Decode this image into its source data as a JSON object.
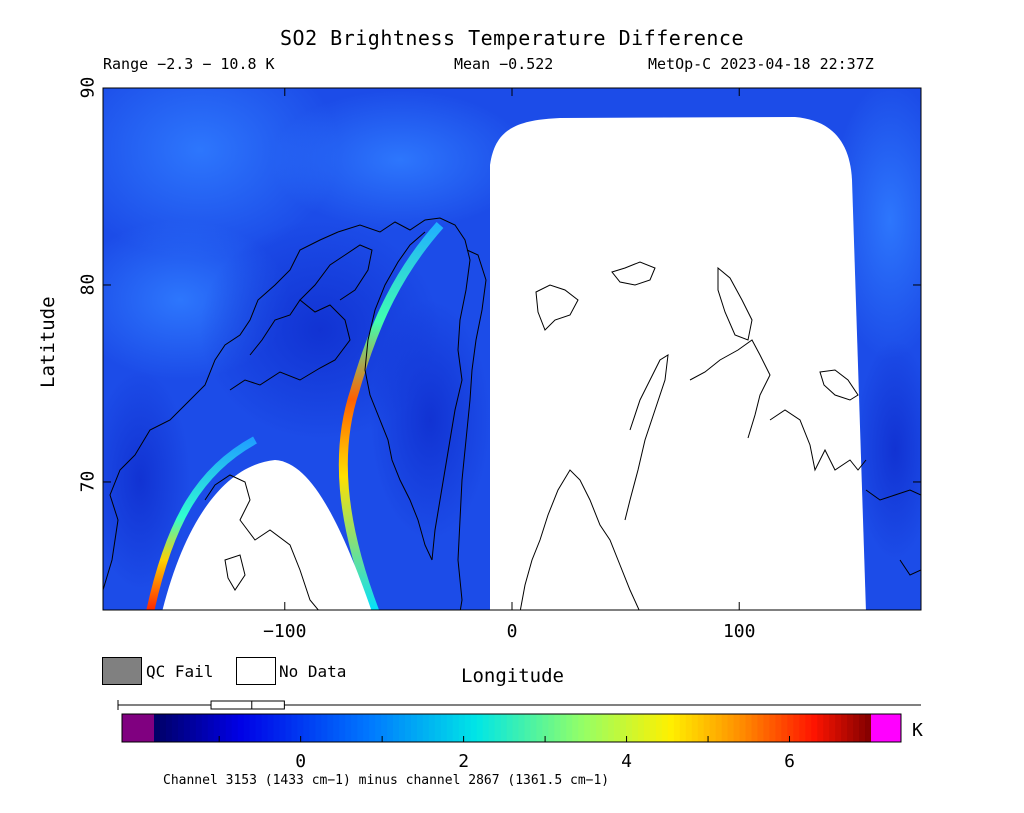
{
  "header": {
    "title": "SO2 Brightness Temperature Difference",
    "range": "Range −2.3 − 10.8 K",
    "mean": "Mean −0.522",
    "satellite": "MetOp-C 2023-04-18 22:37Z"
  },
  "chart_data": {
    "type": "heatmap",
    "xlabel": "Longitude",
    "ylabel": "Latitude",
    "xlim": [
      -180,
      180
    ],
    "ylim": [
      63.5,
      90
    ],
    "x_ticks": [
      {
        "value": -100,
        "label": "−100"
      },
      {
        "value": 0,
        "label": "0"
      },
      {
        "value": 100,
        "label": "100"
      }
    ],
    "y_ticks": [
      {
        "value": 70,
        "label": "70"
      },
      {
        "value": 80,
        "label": "80"
      },
      {
        "value": 90,
        "label": "90"
      }
    ],
    "colorbar": {
      "unit": "K",
      "range": [
        -1.8,
        7.0
      ],
      "ticks": [
        {
          "value": 0,
          "label": "0"
        },
        {
          "value": 2,
          "label": "2"
        },
        {
          "value": 4,
          "label": "4"
        },
        {
          "value": 6,
          "label": "6"
        }
      ],
      "underflow_color": "#800080",
      "overflow_color": "#ff00ff",
      "boxplot": {
        "min": -1.8,
        "q1": -1.1,
        "median": -0.6,
        "q3": -0.2,
        "max": 7.0
      }
    }
  },
  "legend": {
    "qc_fail": {
      "label": "QC Fail",
      "color": "#808080"
    },
    "no_data": {
      "label": "No Data",
      "color": "#ffffff"
    }
  },
  "footnote": "Channel 3153 (1433 cm−1) minus channel 2867 (1361.5 cm−1)"
}
